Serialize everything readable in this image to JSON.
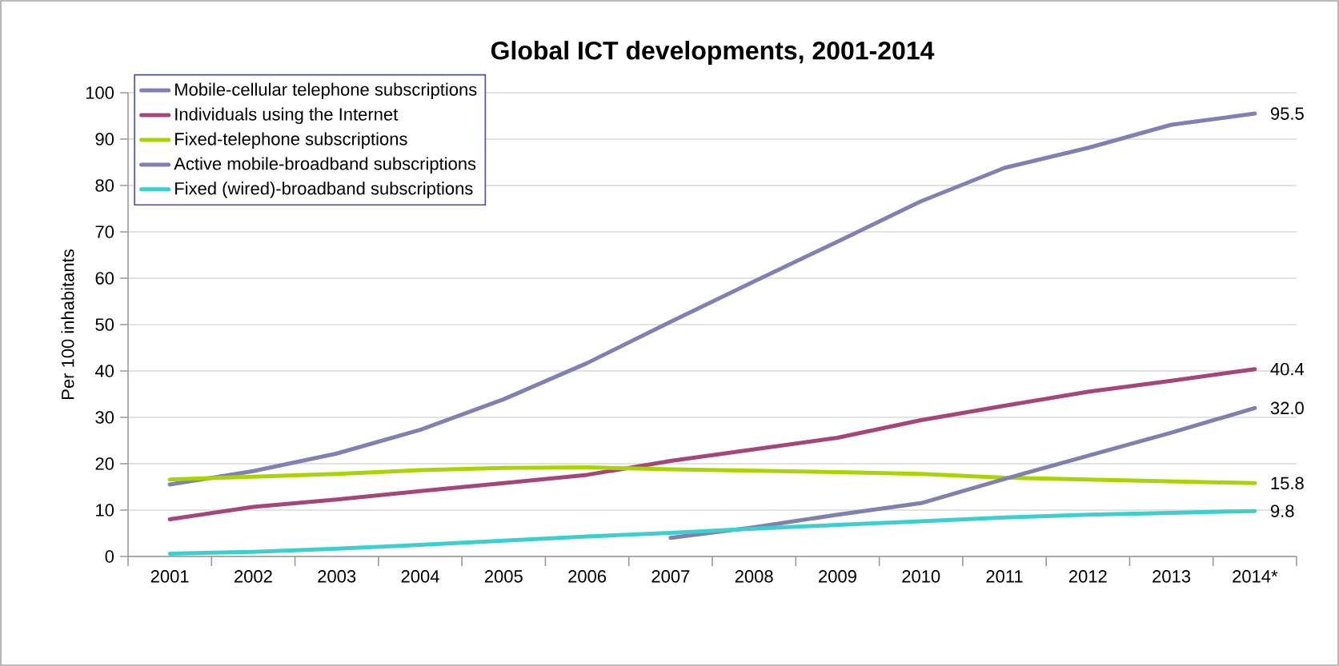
{
  "chart_data": {
    "type": "line",
    "title": "Global ICT developments, 2001-2014",
    "ylabel": "Per 100 inhabitants",
    "categories": [
      "2001",
      "2002",
      "2003",
      "2004",
      "2005",
      "2006",
      "2007",
      "2008",
      "2009",
      "2010",
      "2011",
      "2012",
      "2013",
      "2014*"
    ],
    "ylim": [
      0,
      100
    ],
    "yticks": [
      0,
      10,
      20,
      30,
      40,
      50,
      60,
      70,
      80,
      90,
      100
    ],
    "grid": "y",
    "legend": "top left",
    "marker": "none",
    "line_style": "solid",
    "series": [
      {
        "name": "Mobile-cellular telephone subscriptions",
        "color": "#8080b4",
        "values": [
          15.5,
          18.4,
          22.2,
          27.3,
          33.9,
          41.7,
          50.6,
          59.3,
          67.9,
          76.6,
          83.8,
          88.1,
          93.1,
          95.5
        ],
        "value_labels": [
          null,
          null,
          null,
          null,
          null,
          null,
          null,
          null,
          null,
          null,
          null,
          null,
          null,
          "95.5"
        ]
      },
      {
        "name": "Individuals using the Internet",
        "color": "#a5467a",
        "values": [
          8.0,
          10.7,
          12.3,
          14.1,
          15.8,
          17.6,
          20.6,
          23.1,
          25.6,
          29.4,
          32.5,
          35.5,
          37.9,
          40.4
        ],
        "value_labels": [
          null,
          null,
          null,
          null,
          null,
          null,
          null,
          null,
          null,
          null,
          null,
          null,
          null,
          "40.4"
        ]
      },
      {
        "name": "Fixed-telephone subscriptions",
        "color": "#a8d400",
        "values": [
          16.6,
          17.2,
          17.8,
          18.6,
          19.1,
          19.2,
          18.8,
          18.5,
          18.2,
          17.8,
          17.0,
          16.6,
          16.2,
          15.8
        ],
        "value_labels": [
          null,
          null,
          null,
          null,
          null,
          null,
          null,
          null,
          null,
          null,
          null,
          null,
          null,
          "15.8"
        ]
      },
      {
        "name": "Active mobile-broadband subscriptions",
        "color": "#7f7fb0",
        "values": [
          null,
          null,
          null,
          null,
          null,
          null,
          4.0,
          6.3,
          9.0,
          11.5,
          16.7,
          21.7,
          26.7,
          32.0
        ],
        "value_labels": [
          null,
          null,
          null,
          null,
          null,
          null,
          null,
          null,
          null,
          null,
          null,
          null,
          null,
          "32.0"
        ]
      },
      {
        "name": "Fixed (wired)-broadband subscriptions",
        "color": "#3ccfcf",
        "values": [
          0.6,
          1.0,
          1.7,
          2.5,
          3.4,
          4.3,
          5.1,
          6.0,
          6.8,
          7.6,
          8.4,
          9.0,
          9.4,
          9.8
        ],
        "value_labels": [
          null,
          null,
          null,
          null,
          null,
          null,
          null,
          null,
          null,
          null,
          null,
          null,
          null,
          "9.8"
        ]
      }
    ]
  }
}
